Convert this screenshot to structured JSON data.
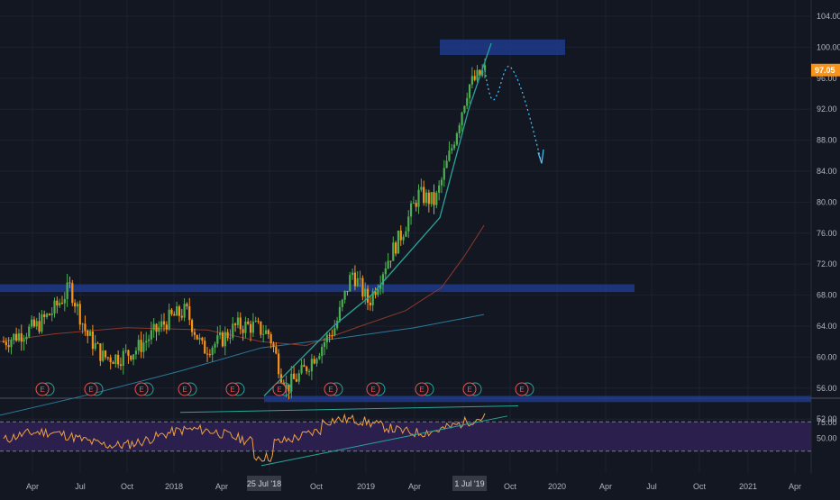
{
  "chart_data": [
    {
      "type": "candlestick",
      "panel": "price",
      "y_ticks": [
        "104.00",
        "100.00",
        "96.00",
        "92.00",
        "88.00",
        "84.00",
        "80.00",
        "76.00",
        "72.00",
        "68.00",
        "64.00",
        "60.00",
        "56.00",
        "52.00"
      ],
      "ylim": [
        50,
        105
      ],
      "last_price": "97.05",
      "grid": true,
      "candles_approx": [
        {
          "date": "2017-02",
          "close": 62
        },
        {
          "date": "2017-03",
          "close": 63
        },
        {
          "date": "2017-04",
          "close": 64
        },
        {
          "date": "2017-05",
          "close": 66
        },
        {
          "date": "2017-06",
          "close": 69
        },
        {
          "date": "2017-07",
          "close": 63
        },
        {
          "date": "2017-08",
          "close": 60
        },
        {
          "date": "2017-09",
          "close": 60
        },
        {
          "date": "2017-10",
          "close": 61
        },
        {
          "date": "2017-11",
          "close": 63
        },
        {
          "date": "2017-12",
          "close": 65
        },
        {
          "date": "2018-01",
          "close": 66
        },
        {
          "date": "2018-02",
          "close": 61
        },
        {
          "date": "2018-03",
          "close": 62
        },
        {
          "date": "2018-04",
          "close": 64
        },
        {
          "date": "2018-05",
          "close": 64
        },
        {
          "date": "2018-06",
          "close": 63
        },
        {
          "date": "2018-07",
          "close": 56
        },
        {
          "date": "2018-08",
          "close": 58
        },
        {
          "date": "2018-09",
          "close": 61
        },
        {
          "date": "2018-10",
          "close": 64
        },
        {
          "date": "2018-11",
          "close": 71
        },
        {
          "date": "2018-12",
          "close": 67
        },
        {
          "date": "2019-01",
          "close": 72
        },
        {
          "date": "2019-02",
          "close": 76
        },
        {
          "date": "2019-03",
          "close": 81
        },
        {
          "date": "2019-04",
          "close": 80
        },
        {
          "date": "2019-05",
          "close": 87
        },
        {
          "date": "2019-06",
          "close": 95
        },
        {
          "date": "2019-07",
          "close": 97
        }
      ],
      "resistance_zone_top": [
        99,
        101
      ],
      "resistance_zone_mid": [
        68.4,
        69.4
      ],
      "support_zone": [
        54.2,
        55.0
      ],
      "projection_from": 97,
      "projection_peak": 97.5,
      "projection_to": 85,
      "ma_slow_end": 65.5,
      "ma_fast_end": 77
    },
    {
      "type": "line",
      "panel": "rsi",
      "y_ticks": [
        "75.00",
        "50.00"
      ],
      "levels": [
        30,
        70
      ],
      "band_fill": "#2a1f4d",
      "line_color": "#f0a040"
    }
  ],
  "x_axis": {
    "labels": [
      "Apr",
      "Jul",
      "Oct",
      "2018",
      "Apr",
      "Jul",
      "Oct",
      "2019",
      "Apr",
      "Jul",
      "Oct",
      "2020",
      "Apr",
      "Jul",
      "Oct",
      "2021",
      "Apr"
    ],
    "highlight_start": "25 Jul '18",
    "highlight_end": "1 Jul '19"
  },
  "earnings_markers": [
    "E",
    "E",
    "E",
    "E",
    "E",
    "E",
    "E",
    "E",
    "E",
    "E",
    "E"
  ],
  "colors": {
    "background": "#131722",
    "up": "#26a69a",
    "down": "#ef5350",
    "orange_candle": "#f7931a",
    "green_candle": "#4caf50",
    "zone": "#1e3a8a",
    "trendline": "#26a69a",
    "ma_slow": "#2a7a9b",
    "ma_fast": "#8b3a2a",
    "projection": "#4fc3f7",
    "price_label": "#f7931a"
  }
}
